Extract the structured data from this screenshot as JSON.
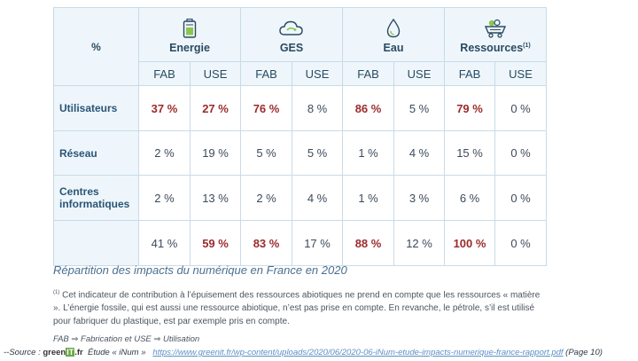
{
  "table": {
    "corner": "%",
    "groups": [
      {
        "label": "Energie",
        "sup": "",
        "icon": "battery-icon"
      },
      {
        "label": "GES",
        "sup": "",
        "icon": "cloud-icon"
      },
      {
        "label": "Eau",
        "sup": "",
        "icon": "water-drop-icon"
      },
      {
        "label": "Ressources",
        "sup": "(1)",
        "icon": "mining-cart-icon"
      }
    ],
    "subheaders": [
      "FAB",
      "USE",
      "FAB",
      "USE",
      "FAB",
      "USE",
      "FAB",
      "USE"
    ],
    "rows": [
      {
        "label": "Utilisateurs",
        "values": [
          "37 %",
          "27 %",
          "76 %",
          "8 %",
          "86 %",
          "5 %",
          "79 %",
          "0 %"
        ]
      },
      {
        "label": "Réseau",
        "values": [
          "2 %",
          "19 %",
          "5 %",
          "5 %",
          "1 %",
          "4 %",
          "15 %",
          "0 %"
        ]
      },
      {
        "label": "Centres informatiques",
        "values": [
          "2 %",
          "13 %",
          "2 %",
          "4 %",
          "1 %",
          "3 %",
          "6 %",
          "0 %"
        ]
      },
      {
        "label": "",
        "values": [
          "41 %",
          "59 %",
          "83 %",
          "17 %",
          "88 %",
          "12 %",
          "100 %",
          "0 %"
        ]
      }
    ],
    "highlight_color": "#9c2b2b"
  },
  "caption": "Répartition des impacts du numérique en France en 2020",
  "note": {
    "marker": "(1)",
    "text": "Cet indicateur de contribution à l’épuisement des ressources abiotiques ne prend en compte que les ressources « matière ». L’énergie fossile, qui est aussi une ressource abiotique, n’est pas prise en compte. En revanche, le pétrole, s’il est utilisé pour fabriquer du plastique, est par exemple pris en compte."
  },
  "legend": "FAB ⇒ Fabrication et USE ⇒ Utilisation",
  "source": {
    "prefix": "--Source : ",
    "logo_green": "green",
    "logo_it": "IT",
    "logo_fr": ".fr",
    "study": "Étude « iNum »",
    "url": "https://www.greenit.fr/wp-content/uploads/2020/06/2020-06-iNum-etude-impacts-numerique-france-rapport.pdf",
    "page": "(Page 10)"
  }
}
